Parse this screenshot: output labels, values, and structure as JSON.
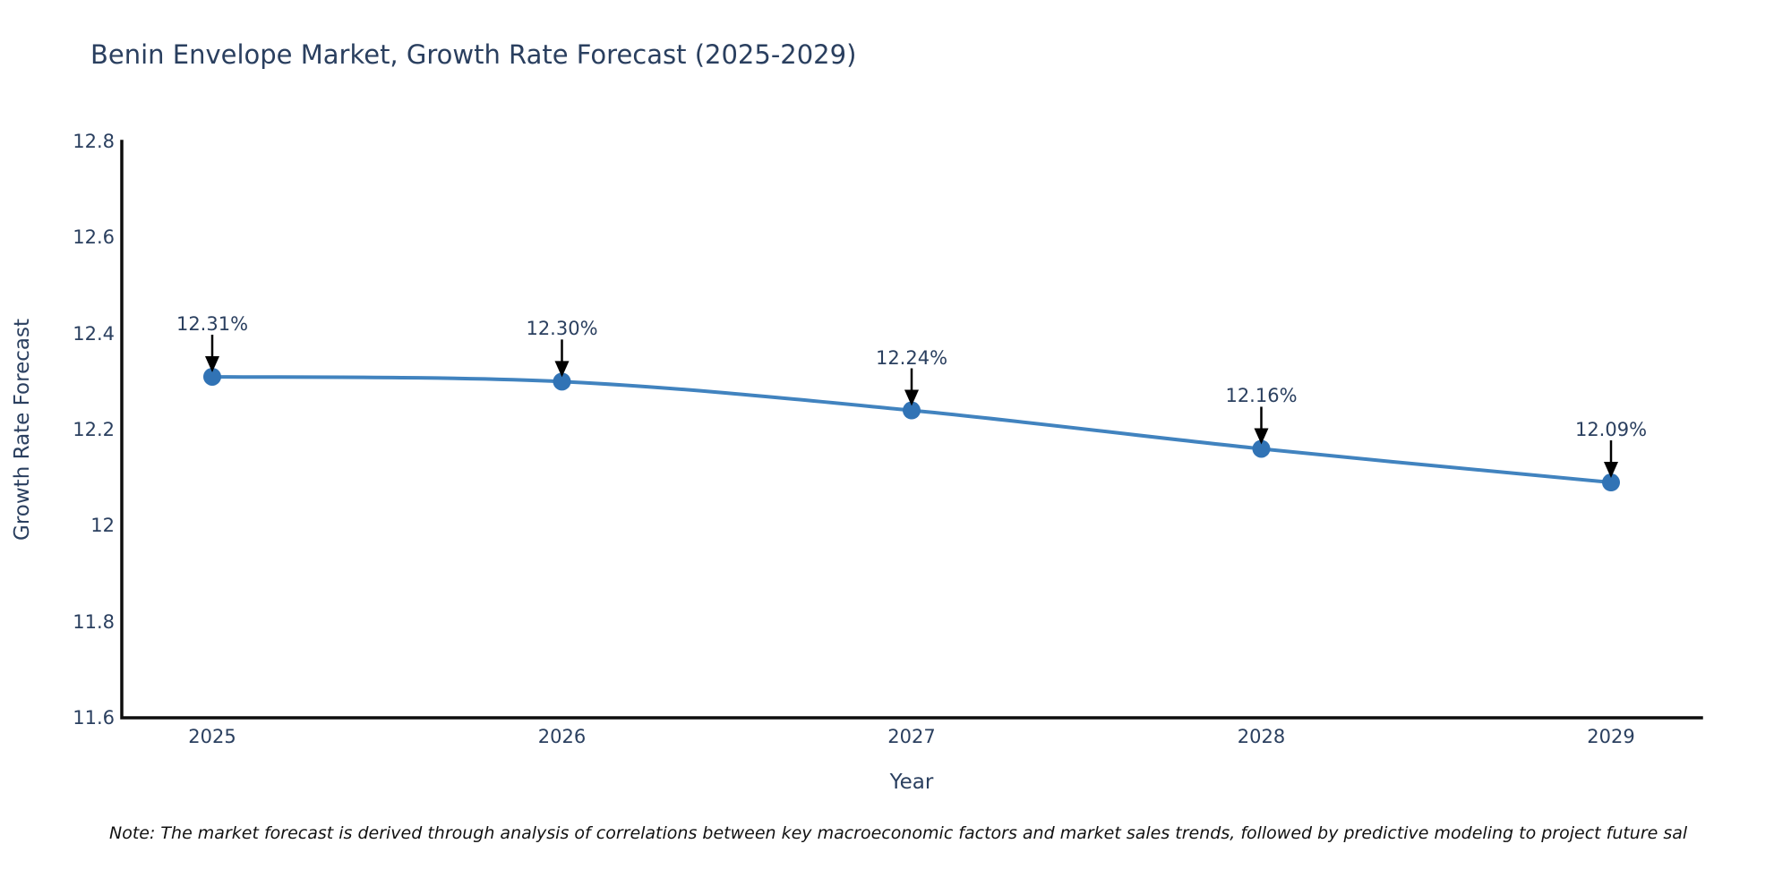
{
  "title": "Benin Envelope Market, Growth Rate Forecast (2025-2029)",
  "note": "Note: The market forecast is derived through analysis of correlations between key macroeconomic factors and market sales trends, followed by predictive modeling to project future sal",
  "chart_data": {
    "type": "line",
    "title": "Benin Envelope Market, Growth Rate Forecast (2025-2029)",
    "xlabel": "Year",
    "ylabel": "Growth Rate Forecast",
    "categories": [
      "2025",
      "2026",
      "2027",
      "2028",
      "2029"
    ],
    "values": [
      12.31,
      12.3,
      12.24,
      12.16,
      12.09
    ],
    "point_labels": [
      "12.31%",
      "12.30%",
      "12.24%",
      "12.16%",
      "12.09%"
    ],
    "ylim": [
      11.6,
      12.8
    ],
    "yticks": [
      12.8,
      12.6,
      12.4,
      12.2,
      12.0,
      11.8,
      11.6
    ],
    "ytick_labels": [
      "12.8",
      "12.6",
      "12.4",
      "12.2",
      "12",
      "11.8",
      "11.6"
    ],
    "grid": false,
    "legend": "none",
    "marker_style": "circle",
    "annotation_style": "text-with-down-arrow",
    "colors": {
      "line": "#4183bf",
      "marker": "#3173b5",
      "axis": "#0d0d0d",
      "tick_text": "#2a3f5f",
      "title_text": "#2a3f5f",
      "annotation_text": "#2a3f5f",
      "annotation_arrow": "#000000",
      "note_text": "#111111",
      "background": "#ffffff"
    }
  }
}
